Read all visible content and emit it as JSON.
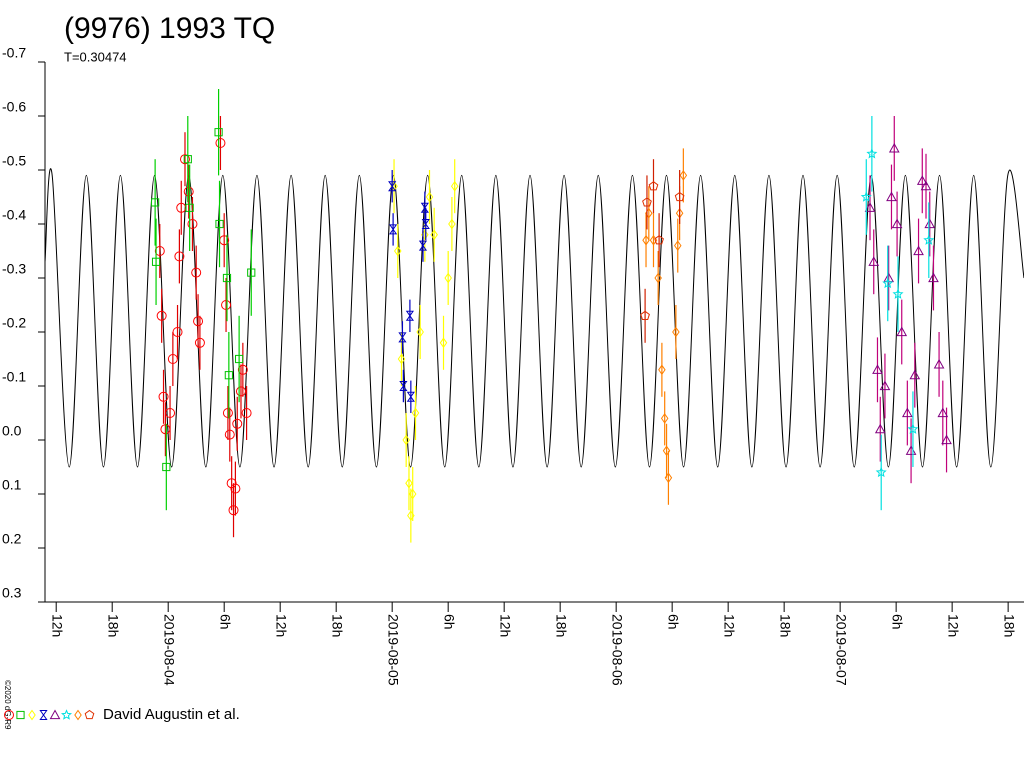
{
  "chart_data": {
    "type": "lightcurve",
    "title": "(9976) 1993 TQ",
    "subtitle": "T=0.30474",
    "legend_label": "David Augustin et al.",
    "copyright": "©2020 dG-R9",
    "invert_y": true,
    "ylim": [
      -0.7,
      0.3
    ],
    "yticks": [
      -0.7,
      -0.6,
      -0.5,
      -0.4,
      -0.3,
      -0.2,
      -0.1,
      {
        "value": 0,
        "label": "0.0"
      },
      0.1,
      0.2,
      0.3
    ],
    "xlim": [
      -13.2,
      91.7
    ],
    "xticks": [
      {
        "value": -12,
        "label": "12h"
      },
      {
        "value": -6,
        "label": "18h"
      },
      {
        "value": 0,
        "label": "2019-08-04"
      },
      {
        "value": 6,
        "label": "6h"
      },
      {
        "value": 12,
        "label": "12h"
      },
      {
        "value": 18,
        "label": "18h"
      },
      {
        "value": 24,
        "label": "2019-08-05"
      },
      {
        "value": 30,
        "label": "6h"
      },
      {
        "value": 36,
        "label": "12h"
      },
      {
        "value": 42,
        "label": "18h"
      },
      {
        "value": 48,
        "label": "2019-08-06"
      },
      {
        "value": 54,
        "label": "6h"
      },
      {
        "value": 60,
        "label": "12h"
      },
      {
        "value": 66,
        "label": "18h"
      },
      {
        "value": 72,
        "label": "2019-08-07"
      },
      {
        "value": 78,
        "label": "6h"
      },
      {
        "value": 84,
        "label": "12h"
      },
      {
        "value": 90,
        "label": "18h"
      }
    ],
    "model": {
      "color": "#000000",
      "x": [
        -13.2,
        -12.43,
        -10.6,
        -8.77,
        -6.94,
        -5.12,
        -3.29,
        -1.46,
        0.37,
        2.2,
        4.03,
        5.85,
        7.68,
        9.51,
        11.34,
        13.17,
        15.0,
        16.82,
        18.65,
        20.48,
        22.31,
        24.14,
        25.97,
        27.8,
        29.63,
        31.45,
        33.28,
        35.11,
        36.94,
        38.77,
        40.6,
        42.42,
        44.25,
        46.08,
        47.91,
        49.74,
        51.57,
        53.39,
        55.22,
        57.05,
        58.88,
        60.71,
        62.54,
        64.37,
        66.2,
        68.02,
        69.85,
        71.68,
        73.51,
        75.34,
        77.17,
        78.99,
        80.82,
        82.65,
        84.48,
        86.31,
        88.14,
        89.96,
        91.7
      ],
      "values": [
        -0.33,
        -0.49,
        0.05,
        -0.49,
        0.05,
        -0.49,
        0.05,
        -0.49,
        0.05,
        -0.49,
        0.05,
        -0.49,
        0.05,
        -0.49,
        0.05,
        -0.49,
        0.05,
        -0.49,
        0.05,
        -0.49,
        0.05,
        -0.49,
        0.05,
        -0.49,
        0.05,
        -0.49,
        0.05,
        -0.49,
        0.05,
        -0.49,
        0.05,
        -0.49,
        0.05,
        -0.49,
        0.05,
        -0.49,
        0.05,
        -0.49,
        0.05,
        -0.49,
        0.05,
        -0.49,
        0.05,
        -0.49,
        0.05,
        -0.49,
        0.05,
        -0.49,
        0.05,
        -0.49,
        0.05,
        -0.49,
        0.05,
        -0.49,
        0.05,
        -0.49,
        0.05,
        -0.49,
        -0.3
      ]
    },
    "series": [
      {
        "marker": "circle",
        "color": "#ff0000",
        "error_color": "#e00000",
        "error": 0.05,
        "x": [
          -0.9,
          -0.7,
          -0.5,
          -0.3,
          0.2,
          0.5,
          1.0,
          1.2,
          1.4,
          1.8,
          2.2,
          2.6,
          3.0,
          3.2,
          3.4,
          5.6,
          6.0,
          6.2,
          6.4,
          6.6,
          6.8,
          7.0,
          7.2,
          7.4,
          7.8,
          8.0,
          8.4
        ],
        "values": [
          -0.35,
          -0.23,
          -0.08,
          -0.02,
          -0.05,
          -0.15,
          -0.2,
          -0.34,
          -0.43,
          -0.52,
          -0.46,
          -0.4,
          -0.31,
          -0.22,
          -0.18,
          -0.55,
          -0.37,
          -0.25,
          -0.05,
          -0.01,
          0.08,
          0.13,
          0.09,
          -0.03,
          -0.09,
          -0.13,
          -0.05
        ]
      },
      {
        "marker": "square",
        "color": "#00c000",
        "error_color": "#00d000",
        "error": 0.08,
        "x": [
          -1.4,
          -1.3,
          -0.2,
          2.1,
          2.3,
          5.4,
          5.5,
          6.3,
          6.5,
          7.6,
          8.9
        ],
        "values": [
          -0.44,
          -0.33,
          0.05,
          -0.52,
          -0.43,
          -0.57,
          -0.4,
          -0.3,
          -0.12,
          -0.15,
          -0.31
        ]
      },
      {
        "marker": "diamond",
        "color": "#ffff00",
        "error_color": "#ffff00",
        "error": 0.05,
        "x": [
          24.2,
          24.6,
          25.0,
          25.5,
          25.8,
          26.0,
          26.2,
          26.5,
          27.0,
          27.5,
          28.0,
          28.5,
          29.5,
          30.0,
          30.4,
          30.7
        ],
        "values": [
          -0.47,
          -0.35,
          -0.15,
          0.0,
          0.08,
          0.14,
          0.1,
          -0.05,
          -0.2,
          -0.38,
          -0.45,
          -0.38,
          -0.18,
          -0.3,
          -0.4,
          -0.47
        ]
      },
      {
        "marker": "bowtie",
        "color": "#0000c0",
        "error_color": "#0000c0",
        "error": 0.03,
        "x": [
          24.0,
          24.1,
          25.1,
          25.2,
          25.9,
          26.0,
          27.3,
          27.5,
          27.6
        ],
        "values": [
          -0.47,
          -0.39,
          -0.19,
          -0.1,
          -0.23,
          -0.08,
          -0.36,
          -0.43,
          -0.4
        ]
      },
      {
        "marker": "triangle",
        "color": "#800080",
        "error_color": "#c0007a",
        "error": 0.06,
        "x": [
          75.2,
          75.6,
          76.0,
          76.3,
          76.8,
          77.2,
          77.5,
          77.8,
          78.1,
          78.6,
          79.2,
          79.6,
          80.0,
          80.4,
          80.8,
          81.2,
          81.6,
          82.0,
          82.6,
          83.0,
          83.4
        ],
        "values": [
          -0.43,
          -0.33,
          -0.13,
          -0.02,
          -0.1,
          -0.3,
          -0.45,
          -0.54,
          -0.4,
          -0.2,
          -0.05,
          0.02,
          -0.12,
          -0.35,
          -0.48,
          -0.47,
          -0.4,
          -0.3,
          -0.14,
          -0.05,
          0.0
        ]
      },
      {
        "marker": "star",
        "color": "#00e0e0",
        "error_color": "#00e0e0",
        "error": 0.07,
        "x": [
          74.8,
          75.4,
          76.4,
          77.1,
          78.2,
          79.8,
          81.5
        ],
        "values": [
          -0.45,
          -0.53,
          0.06,
          -0.29,
          -0.27,
          -0.02,
          -0.37
        ]
      },
      {
        "marker": "diamond",
        "color": "#ff8000",
        "error_color": "#ff8000",
        "error": 0.05,
        "x": [
          51.2,
          51.5,
          52.0,
          52.5,
          52.9,
          53.2,
          53.4,
          53.6,
          54.4,
          54.6,
          54.8,
          55.2
        ],
        "values": [
          -0.37,
          -0.42,
          -0.37,
          -0.3,
          -0.13,
          -0.04,
          0.02,
          0.07,
          -0.2,
          -0.36,
          -0.42,
          -0.49
        ]
      },
      {
        "marker": "pentagon",
        "color": "#e03000",
        "error_color": "#d02000",
        "error": 0.05,
        "x": [
          51.3,
          51.1,
          52.0,
          52.6,
          54.8
        ],
        "values": [
          -0.44,
          -0.23,
          -0.47,
          -0.37,
          -0.45
        ]
      }
    ]
  }
}
